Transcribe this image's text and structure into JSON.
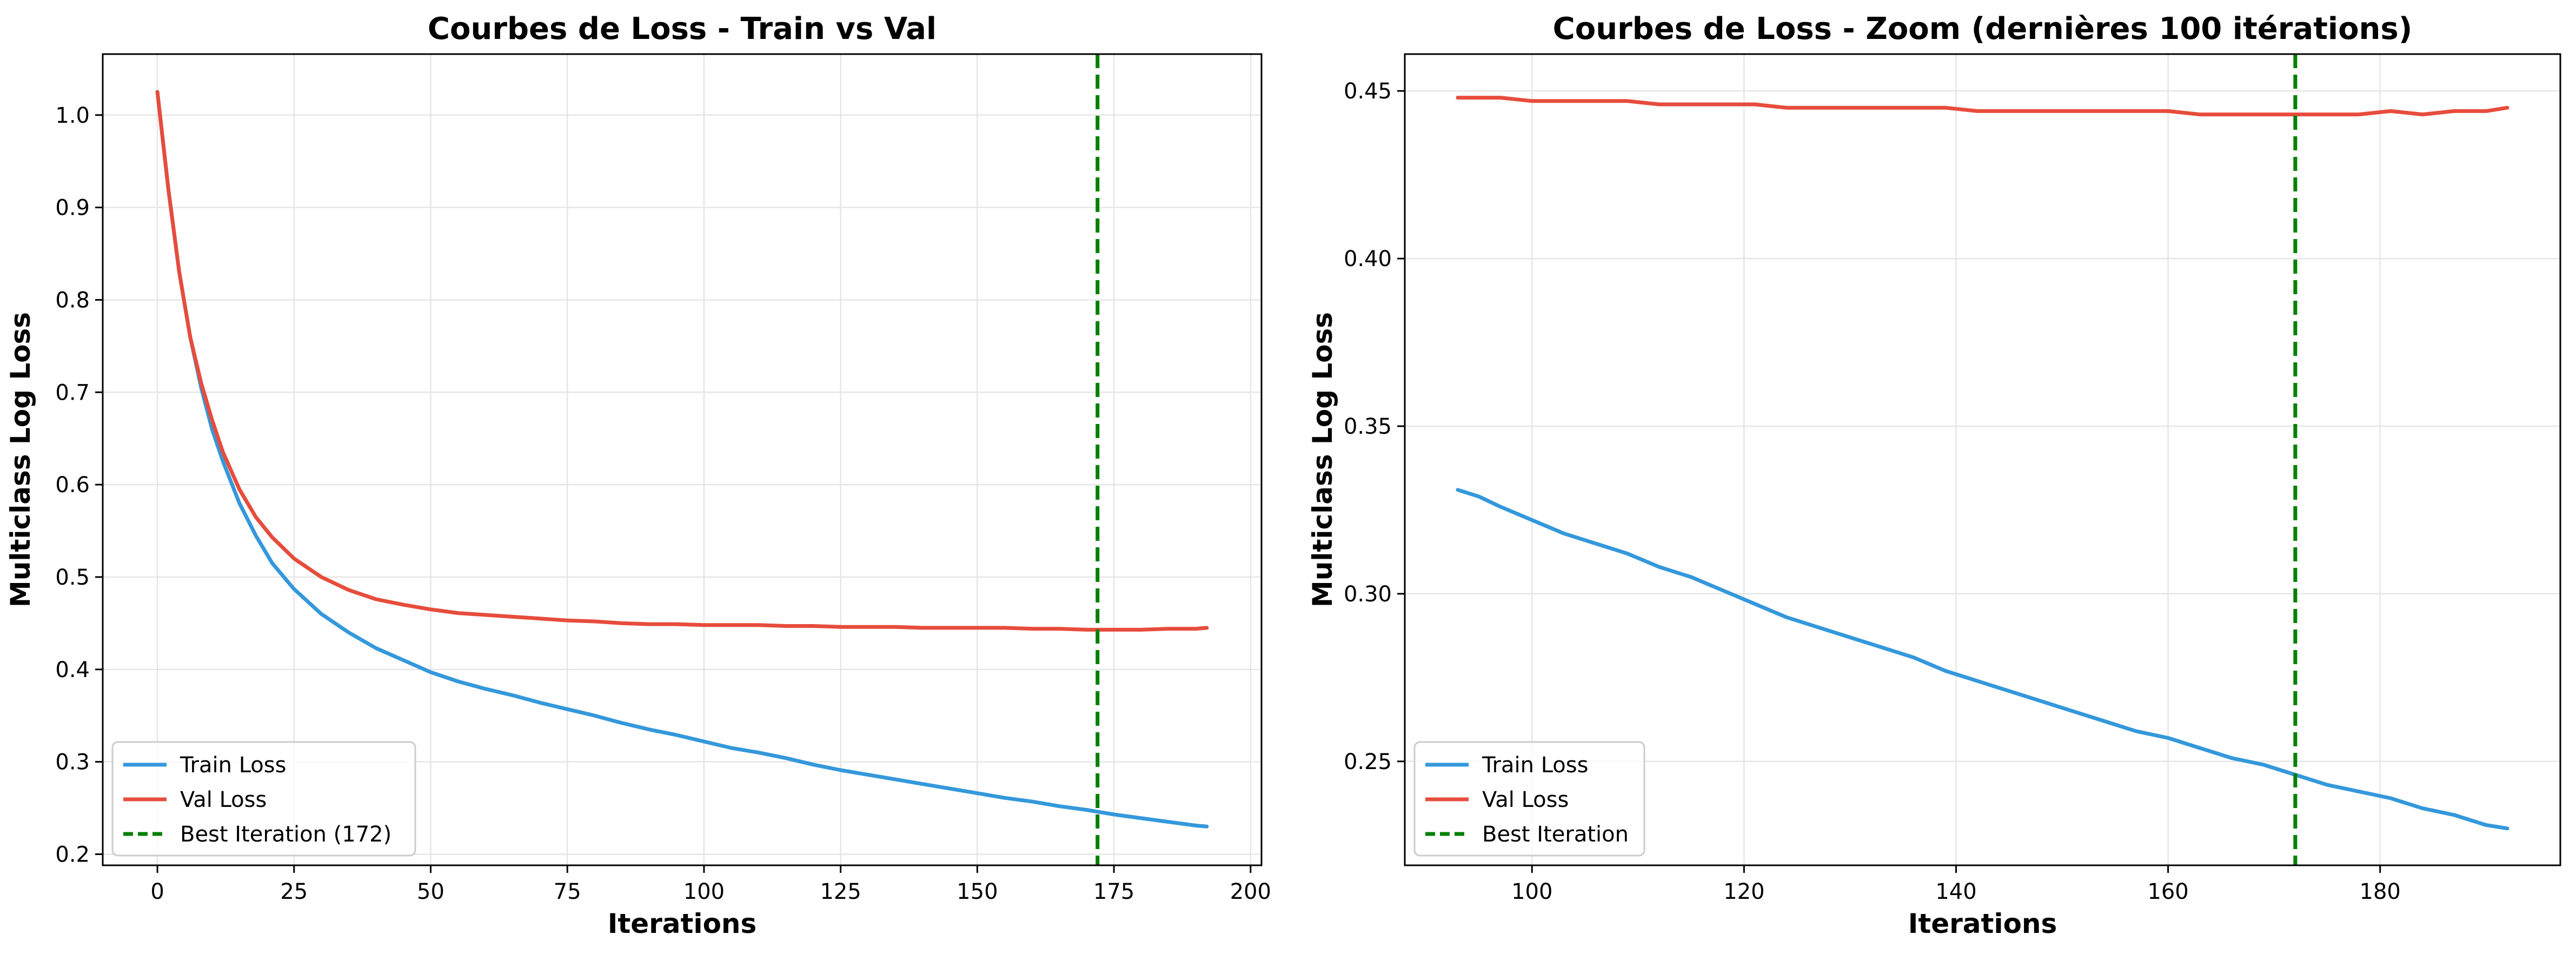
{
  "chart_data": [
    {
      "type": "line",
      "title": "Courbes de Loss - Train vs Val",
      "xlabel": "Iterations",
      "ylabel": "Multiclass Log Loss",
      "xlim": [
        -10,
        202
      ],
      "ylim": [
        0.188,
        1.066
      ],
      "xticks": [
        0,
        25,
        50,
        75,
        100,
        125,
        150,
        175,
        200
      ],
      "yticks": [
        0.2,
        0.3,
        0.4,
        0.5,
        0.6,
        0.7,
        0.8,
        0.9,
        1.0
      ],
      "grid": true,
      "legend_position": "lower-left",
      "series": [
        {
          "name": "Train Loss",
          "color": "#3498db",
          "x": [
            0,
            2,
            4,
            6,
            8,
            10,
            12,
            15,
            18,
            21,
            25,
            30,
            35,
            40,
            45,
            50,
            55,
            60,
            65,
            70,
            75,
            80,
            85,
            90,
            95,
            100,
            105,
            110,
            115,
            120,
            125,
            130,
            135,
            140,
            145,
            150,
            155,
            160,
            165,
            170,
            172,
            175,
            180,
            185,
            190,
            192
          ],
          "y": [
            1.025,
            0.92,
            0.83,
            0.76,
            0.705,
            0.66,
            0.625,
            0.58,
            0.545,
            0.515,
            0.487,
            0.46,
            0.44,
            0.423,
            0.41,
            0.397,
            0.387,
            0.379,
            0.372,
            0.364,
            0.357,
            0.35,
            0.342,
            0.335,
            0.329,
            0.322,
            0.315,
            0.31,
            0.304,
            0.297,
            0.291,
            0.286,
            0.281,
            0.276,
            0.271,
            0.266,
            0.261,
            0.257,
            0.252,
            0.248,
            0.246,
            0.243,
            0.239,
            0.235,
            0.231,
            0.23
          ]
        },
        {
          "name": "Val Loss",
          "color": "#e74c3c",
          "x": [
            0,
            2,
            4,
            6,
            8,
            10,
            12,
            15,
            18,
            21,
            25,
            30,
            35,
            40,
            45,
            50,
            55,
            60,
            65,
            70,
            75,
            80,
            85,
            90,
            95,
            100,
            105,
            110,
            115,
            120,
            125,
            130,
            135,
            140,
            145,
            150,
            155,
            160,
            165,
            170,
            172,
            175,
            180,
            185,
            190,
            192
          ],
          "y": [
            1.025,
            0.92,
            0.83,
            0.76,
            0.71,
            0.67,
            0.635,
            0.595,
            0.565,
            0.543,
            0.52,
            0.5,
            0.486,
            0.476,
            0.47,
            0.465,
            0.461,
            0.459,
            0.457,
            0.455,
            0.453,
            0.452,
            0.45,
            0.449,
            0.449,
            0.448,
            0.448,
            0.448,
            0.447,
            0.447,
            0.446,
            0.446,
            0.446,
            0.445,
            0.445,
            0.445,
            0.445,
            0.444,
            0.444,
            0.443,
            0.443,
            0.443,
            0.443,
            0.444,
            0.444,
            0.445
          ]
        }
      ],
      "vline": {
        "x": 172,
        "label": "Best Iteration (172)",
        "color": "#008000",
        "style": "dashed"
      }
    },
    {
      "type": "line",
      "title": "Courbes de Loss - Zoom (dernières 100 itérations)",
      "xlabel": "Iterations",
      "ylabel": "Multiclass Log Loss",
      "xlim": [
        88,
        197
      ],
      "ylim": [
        0.219,
        0.461
      ],
      "xticks": [
        100,
        120,
        140,
        160,
        180
      ],
      "yticks": [
        0.25,
        0.3,
        0.35,
        0.4,
        0.45
      ],
      "grid": true,
      "legend_position": "lower-left",
      "series": [
        {
          "name": "Train Loss",
          "color": "#3498db",
          "x": [
            93,
            95,
            97,
            100,
            103,
            106,
            109,
            112,
            115,
            118,
            121,
            124,
            127,
            130,
            133,
            136,
            139,
            142,
            145,
            148,
            151,
            154,
            157,
            160,
            163,
            166,
            169,
            172,
            175,
            178,
            181,
            184,
            187,
            190,
            192
          ],
          "y": [
            0.331,
            0.329,
            0.326,
            0.322,
            0.318,
            0.315,
            0.312,
            0.308,
            0.305,
            0.301,
            0.297,
            0.293,
            0.29,
            0.287,
            0.284,
            0.281,
            0.277,
            0.274,
            0.271,
            0.268,
            0.265,
            0.262,
            0.259,
            0.257,
            0.254,
            0.251,
            0.249,
            0.246,
            0.243,
            0.241,
            0.239,
            0.236,
            0.234,
            0.231,
            0.23
          ]
        },
        {
          "name": "Val Loss",
          "color": "#e74c3c",
          "x": [
            93,
            95,
            97,
            100,
            103,
            106,
            109,
            112,
            115,
            118,
            121,
            124,
            127,
            130,
            133,
            136,
            139,
            142,
            145,
            148,
            151,
            154,
            157,
            160,
            163,
            166,
            169,
            172,
            175,
            178,
            181,
            184,
            187,
            190,
            192
          ],
          "y": [
            0.448,
            0.448,
            0.448,
            0.447,
            0.447,
            0.447,
            0.447,
            0.446,
            0.446,
            0.446,
            0.446,
            0.445,
            0.445,
            0.445,
            0.445,
            0.445,
            0.445,
            0.444,
            0.444,
            0.444,
            0.444,
            0.444,
            0.444,
            0.444,
            0.443,
            0.443,
            0.443,
            0.443,
            0.443,
            0.443,
            0.444,
            0.443,
            0.444,
            0.444,
            0.445
          ]
        }
      ],
      "vline": {
        "x": 172,
        "label": "Best Iteration",
        "color": "#008000",
        "style": "dashed"
      }
    }
  ]
}
